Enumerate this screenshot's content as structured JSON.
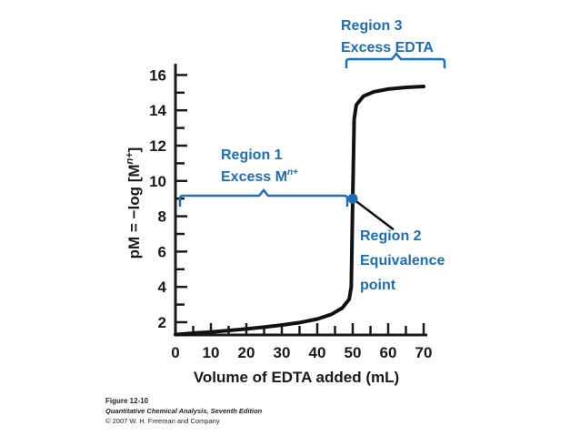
{
  "chart_data": {
    "type": "line",
    "xlabel": "Volume of EDTA added (mL)",
    "ylabel": "pM = −log [M",
    "ylabel_sup": "n+",
    "ylabel_close": "]",
    "xlim": [
      0,
      70
    ],
    "ylim": [
      1,
      16
    ],
    "x_ticks": [
      "0",
      "10",
      "20",
      "30",
      "40",
      "50",
      "60",
      "70"
    ],
    "y_ticks": [
      "2",
      "4",
      "6",
      "8",
      "10",
      "12",
      "14",
      "16"
    ],
    "grid": false,
    "series": [
      {
        "x": [
          0,
          5,
          10,
          15,
          20,
          25,
          30,
          35,
          40,
          44,
          47,
          49,
          49.6,
          50,
          50.4,
          51,
          53,
          56,
          60,
          65,
          70
        ],
        "y": [
          1.3,
          1.38,
          1.45,
          1.53,
          1.62,
          1.72,
          1.84,
          1.98,
          2.18,
          2.45,
          2.8,
          3.3,
          4.0,
          9.0,
          13.5,
          14.3,
          14.8,
          15.05,
          15.2,
          15.3,
          15.35
        ]
      }
    ],
    "equivalence_point": {
      "x": 50,
      "y": 9
    },
    "annotations": {
      "region1": {
        "line1": "Region 1",
        "line2": "Excess M",
        "sup": "n+"
      },
      "region2": {
        "line1": "Region 2",
        "line2": "Equivalence",
        "line3": "point"
      },
      "region3": {
        "line1": "Region 3",
        "line2": "Excess EDTA"
      }
    },
    "colors": {
      "curve": "#111111",
      "accent": "#1f6db3",
      "axis": "#1a1a1a"
    }
  },
  "caption": {
    "figure": "Figure 12-10",
    "book": "Quantitative Chemical Analysis, Seventh Edition",
    "copyright": "© 2007 W. H. Freeman and Company"
  }
}
